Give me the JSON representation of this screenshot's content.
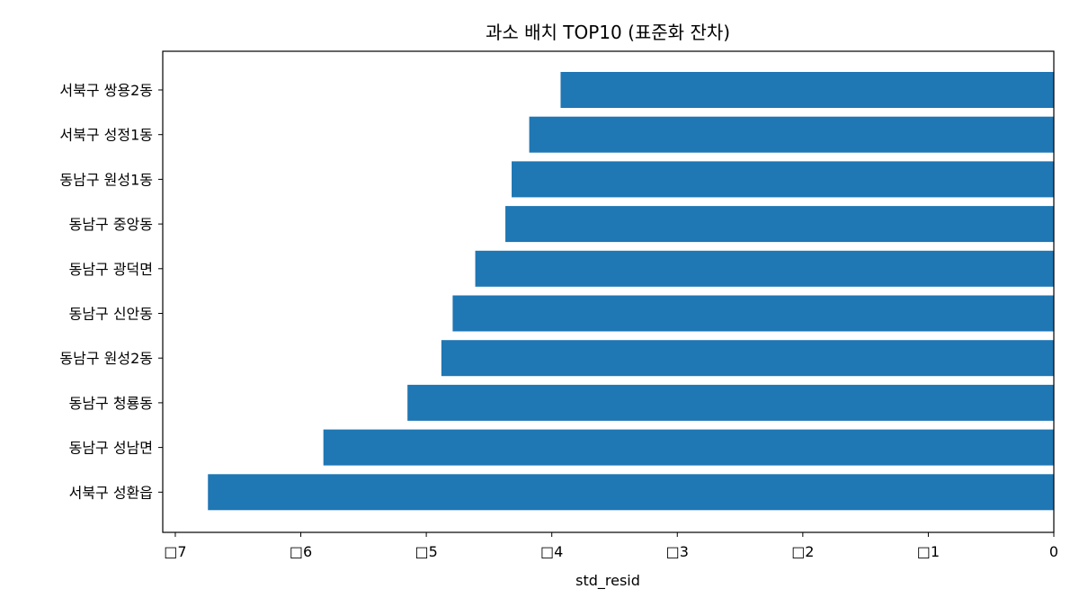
{
  "chart_data": {
    "type": "bar",
    "orientation": "horizontal",
    "title": "과소 배치 TOP10 (표준화 잔차)",
    "xlabel": "std_resid",
    "ylabel": "",
    "xlim": [
      -7.1,
      0
    ],
    "xticks": [
      -7,
      -6,
      -5,
      -4,
      -3,
      -2,
      -1,
      0
    ],
    "xtick_labels": [
      "□7",
      "□6",
      "□5",
      "□4",
      "□3",
      "□2",
      "□1",
      "0"
    ],
    "categories": [
      "서북구 쌍용2동",
      "서북구 성정1동",
      "동남구 원성1동",
      "동남구 중앙동",
      "동남구 광덕면",
      "동남구 신안동",
      "동남구 원성2동",
      "동남구 청룡동",
      "동남구 성남면",
      "서북구 성환읍"
    ],
    "values": [
      -3.93,
      -4.18,
      -4.32,
      -4.37,
      -4.61,
      -4.79,
      -4.88,
      -5.15,
      -5.82,
      -6.74
    ],
    "bar_color": "#1f77b4",
    "grid": false,
    "legend": "none"
  }
}
